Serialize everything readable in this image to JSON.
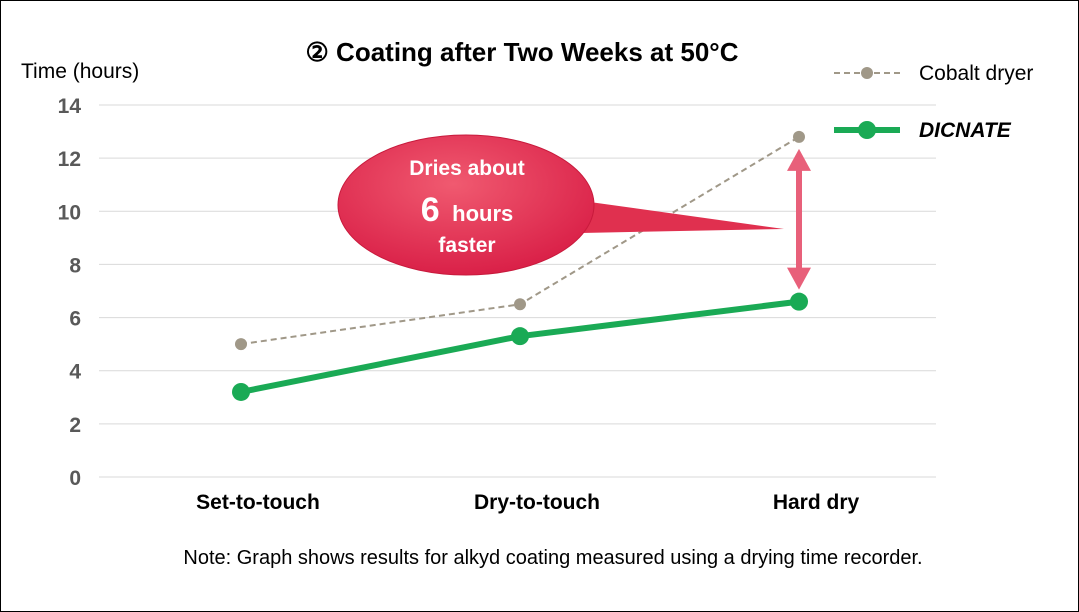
{
  "chart_data": {
    "type": "line",
    "title": "② Coating after Two Weeks at 50°C",
    "ylabel": "Time (hours)",
    "xlabel": "",
    "categories": [
      "Set-to-touch",
      "Dry-to-touch",
      "Hard dry"
    ],
    "ylim": [
      0,
      14
    ],
    "yticks": [
      0,
      2,
      4,
      6,
      8,
      10,
      12,
      14
    ],
    "grid": true,
    "legend_position": "top-right",
    "series": [
      {
        "name": "Cobalt dryer",
        "values": [
          5.0,
          6.5,
          12.8
        ],
        "color": "#a09888",
        "style": "dashed"
      },
      {
        "name": "DICNATE",
        "values": [
          3.2,
          5.3,
          6.6
        ],
        "color": "#1aaa55",
        "style": "solid"
      }
    ],
    "annotation": {
      "line1": "Dries about",
      "number": "6",
      "unit": "hours",
      "line3": "faster",
      "color": "#e0304f",
      "arrow_color": "#e8607a",
      "category": "Hard dry"
    },
    "note": "Note: Graph shows results for alkyd coating measured using a drying time recorder."
  }
}
